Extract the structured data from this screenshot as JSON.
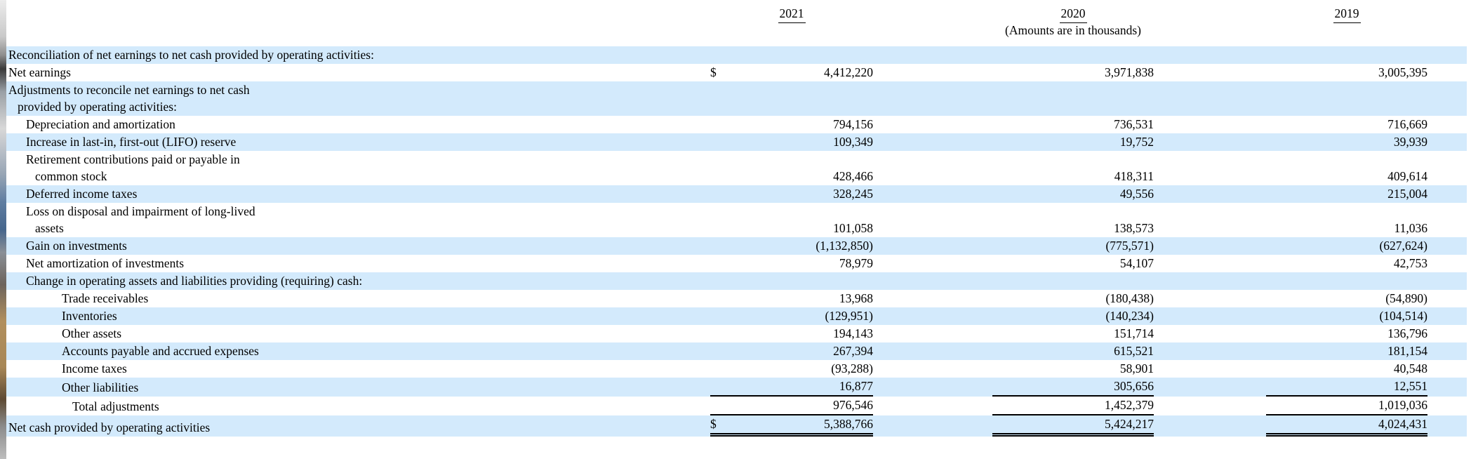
{
  "page": {
    "units_note": "(Amounts are in thousands)",
    "highlight_color": "#d3eafc",
    "currency_symbol": "$"
  },
  "table": {
    "columns": [
      "2021",
      "2020",
      "2019"
    ],
    "rows": [
      {
        "label_lines": [
          "Reconciliation of net earnings to net cash provided by operating activities:"
        ],
        "indent": 0,
        "highlight": true,
        "dollar": false,
        "rule": "none",
        "values": [
          "",
          "",
          ""
        ]
      },
      {
        "label_lines": [
          "Net earnings"
        ],
        "indent": 0,
        "highlight": false,
        "dollar": true,
        "rule": "none",
        "values": [
          "4,412,220",
          "3,971,838",
          "3,005,395"
        ]
      },
      {
        "label_lines": [
          "Adjustments to reconcile net earnings to net cash",
          "provided by operating activities:"
        ],
        "indent": 0,
        "highlight": true,
        "dollar": false,
        "rule": "none",
        "values": [
          "",
          "",
          ""
        ]
      },
      {
        "label_lines": [
          "Depreciation and amortization"
        ],
        "indent": 1,
        "highlight": false,
        "dollar": false,
        "rule": "none",
        "values": [
          "794,156",
          "736,531",
          "716,669"
        ]
      },
      {
        "label_lines": [
          "Increase in last-in, first-out (LIFO) reserve"
        ],
        "indent": 1,
        "highlight": true,
        "dollar": false,
        "rule": "none",
        "values": [
          "109,349",
          "19,752",
          "39,939"
        ]
      },
      {
        "label_lines": [
          "Retirement contributions paid or payable in",
          "common stock"
        ],
        "indent": 1,
        "highlight": false,
        "dollar": false,
        "rule": "none",
        "values": [
          "428,466",
          "418,311",
          "409,614"
        ]
      },
      {
        "label_lines": [
          "Deferred income taxes"
        ],
        "indent": 1,
        "highlight": true,
        "dollar": false,
        "rule": "none",
        "values": [
          "328,245",
          "49,556",
          "215,004"
        ]
      },
      {
        "label_lines": [
          "Loss on disposal and impairment of long-lived",
          "assets"
        ],
        "indent": 1,
        "highlight": false,
        "dollar": false,
        "rule": "none",
        "values": [
          "101,058",
          "138,573",
          "11,036"
        ]
      },
      {
        "label_lines": [
          "Gain on investments"
        ],
        "indent": 1,
        "highlight": true,
        "dollar": false,
        "rule": "none",
        "values": [
          "(1,132,850)",
          "(775,571)",
          "(627,624)"
        ]
      },
      {
        "label_lines": [
          "Net amortization of investments"
        ],
        "indent": 1,
        "highlight": false,
        "dollar": false,
        "rule": "none",
        "values": [
          "78,979",
          "54,107",
          "42,753"
        ]
      },
      {
        "label_lines": [
          "Change in operating assets and liabilities providing (requiring) cash:"
        ],
        "indent": 1,
        "highlight": true,
        "dollar": false,
        "rule": "none",
        "values": [
          "",
          "",
          ""
        ]
      },
      {
        "label_lines": [
          "Trade receivables"
        ],
        "indent": 2,
        "highlight": false,
        "dollar": false,
        "rule": "none",
        "values": [
          "13,968",
          "(180,438)",
          "(54,890)"
        ]
      },
      {
        "label_lines": [
          "Inventories"
        ],
        "indent": 2,
        "highlight": true,
        "dollar": false,
        "rule": "none",
        "values": [
          "(129,951)",
          "(140,234)",
          "(104,514)"
        ]
      },
      {
        "label_lines": [
          "Other assets"
        ],
        "indent": 2,
        "highlight": false,
        "dollar": false,
        "rule": "none",
        "values": [
          "194,143",
          "151,714",
          "136,796"
        ]
      },
      {
        "label_lines": [
          "Accounts payable and accrued expenses"
        ],
        "indent": 2,
        "highlight": true,
        "dollar": false,
        "rule": "none",
        "values": [
          "267,394",
          "615,521",
          "181,154"
        ]
      },
      {
        "label_lines": [
          "Income taxes"
        ],
        "indent": 2,
        "highlight": false,
        "dollar": false,
        "rule": "none",
        "values": [
          "(93,288)",
          "58,901",
          "40,548"
        ]
      },
      {
        "label_lines": [
          "Other liabilities"
        ],
        "indent": 2,
        "highlight": true,
        "dollar": false,
        "rule": "single",
        "values": [
          "16,877",
          "305,656",
          "12,551"
        ]
      },
      {
        "label_lines": [
          "Total adjustments"
        ],
        "indent": 3,
        "highlight": false,
        "dollar": false,
        "rule": "single",
        "values": [
          "976,546",
          "1,452,379",
          "1,019,036"
        ]
      },
      {
        "label_lines": [
          "Net cash provided by operating activities"
        ],
        "indent": 0,
        "highlight": true,
        "dollar": true,
        "rule": "double",
        "values": [
          "5,388,766",
          "5,424,217",
          "4,024,431"
        ]
      }
    ]
  }
}
